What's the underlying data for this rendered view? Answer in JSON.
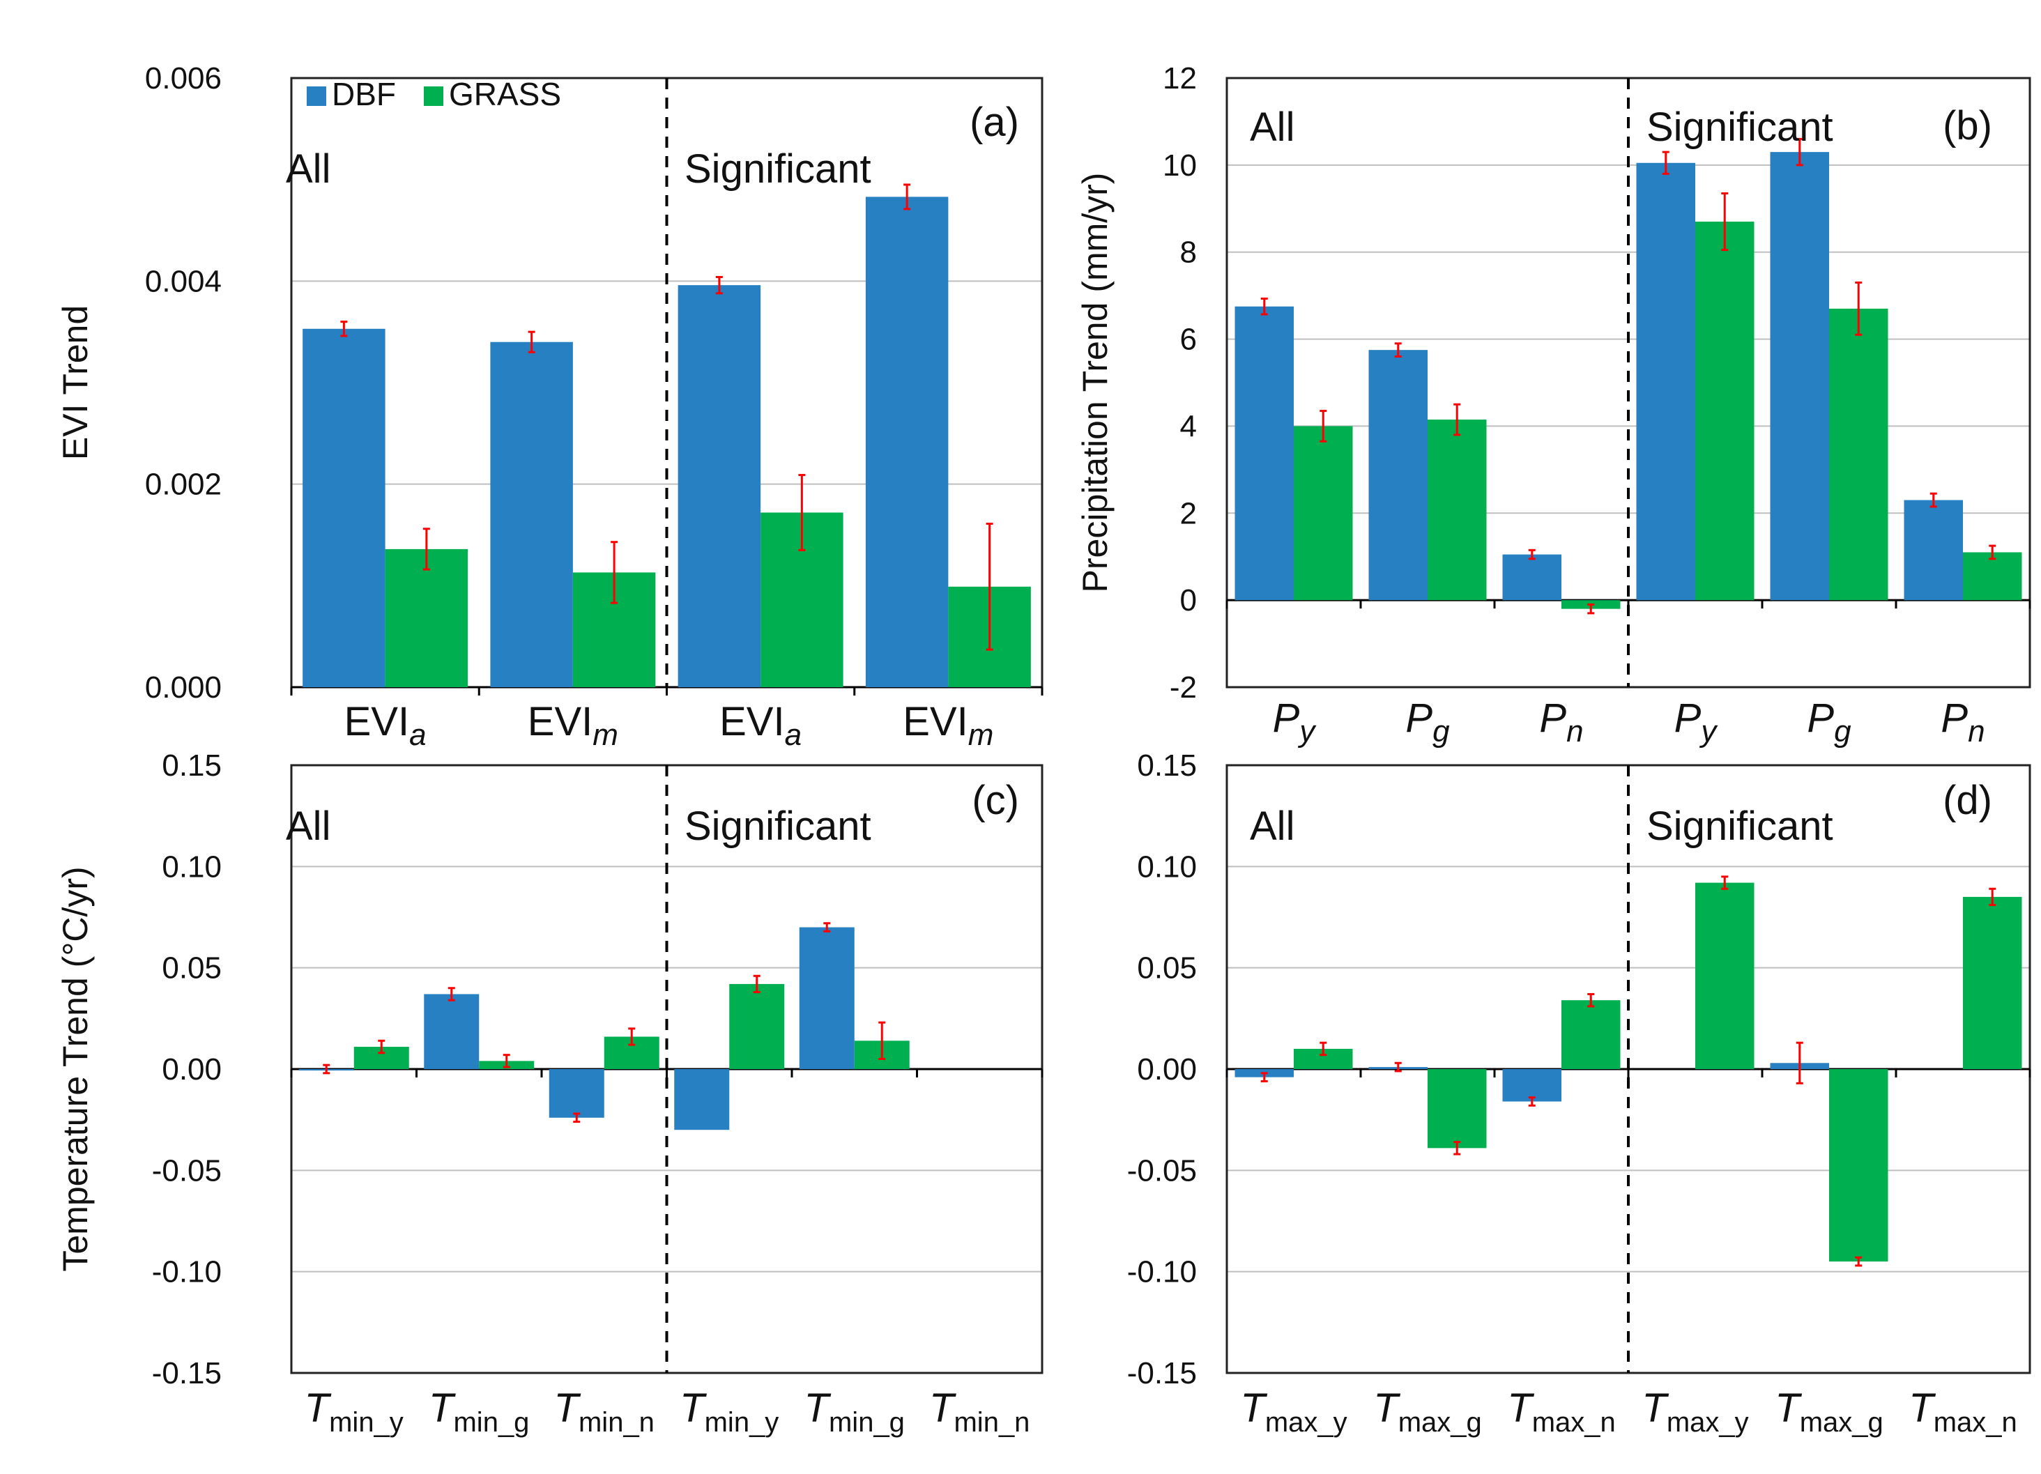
{
  "colors": {
    "DBF": "#2680C2",
    "GRASS": "#00B050",
    "error": "#FF0000",
    "grid": "#BFBFBF",
    "axis": "#000000"
  },
  "legend": {
    "entries": [
      "DBF",
      "GRASS"
    ]
  },
  "chart_data": [
    {
      "id": "a",
      "type": "bar",
      "tag": "(a)",
      "ylabel": "EVI Trend",
      "ylim": [
        0,
        0.006
      ],
      "yticks": [
        0,
        0.002,
        0.004,
        0.006
      ],
      "ytick_labels": [
        "0.000",
        "0.002",
        "0.004",
        "0.006"
      ],
      "group_labels": [
        "All",
        "Significant"
      ],
      "categories": [
        {
          "base": "EVI",
          "sub": "a"
        },
        {
          "base": "EVI",
          "sub": "m"
        },
        {
          "base": "EVI",
          "sub": "a"
        },
        {
          "base": "EVI",
          "sub": "m"
        }
      ],
      "series": [
        {
          "name": "DBF",
          "values": [
            0.00353,
            0.0034,
            0.00396,
            0.00483
          ],
          "errors": [
            7e-05,
            0.0001,
            8e-05,
            0.00012
          ]
        },
        {
          "name": "GRASS",
          "values": [
            0.00136,
            0.00113,
            0.00172,
            0.00099
          ],
          "errors": [
            0.0002,
            0.0003,
            0.00037,
            0.00062
          ]
        }
      ]
    },
    {
      "id": "b",
      "type": "bar",
      "tag": "(b)",
      "ylabel": "Precipitation Trend (mm/yr)",
      "ylim": [
        -2,
        12
      ],
      "yticks": [
        -2,
        0,
        2,
        4,
        6,
        8,
        10,
        12
      ],
      "ytick_labels": [
        "-2",
        "0",
        "2",
        "4",
        "6",
        "8",
        "10",
        "12"
      ],
      "group_labels": [
        "All",
        "Significant"
      ],
      "categories": [
        {
          "base": "P",
          "sub": "y"
        },
        {
          "base": "P",
          "sub": "g"
        },
        {
          "base": "P",
          "sub": "n"
        },
        {
          "base": "P",
          "sub": "y"
        },
        {
          "base": "P",
          "sub": "g"
        },
        {
          "base": "P",
          "sub": "n"
        }
      ],
      "series": [
        {
          "name": "DBF",
          "values": [
            6.75,
            5.75,
            1.05,
            10.05,
            10.3,
            2.3
          ],
          "errors": [
            0.18,
            0.15,
            0.1,
            0.25,
            0.3,
            0.15
          ]
        },
        {
          "name": "GRASS",
          "values": [
            4.0,
            4.15,
            -0.2,
            8.7,
            6.7,
            1.1
          ],
          "errors": [
            0.35,
            0.35,
            0.1,
            0.65,
            0.6,
            0.15
          ]
        }
      ]
    },
    {
      "id": "c",
      "type": "bar",
      "tag": "(c)",
      "ylabel": "Temperature Trend (°C/yr)",
      "ylim": [
        -0.15,
        0.15
      ],
      "yticks": [
        -0.15,
        -0.1,
        -0.05,
        0,
        0.05,
        0.1,
        0.15
      ],
      "ytick_labels": [
        "-0.15",
        "-0.10",
        "-0.05",
        "0.00",
        "0.05",
        "0.10",
        "0.15"
      ],
      "group_labels": [
        "All",
        "Significant"
      ],
      "categories": [
        {
          "base": "T",
          "sub": "min_y"
        },
        {
          "base": "T",
          "sub": "min_g"
        },
        {
          "base": "T",
          "sub": "min_n"
        },
        {
          "base": "T",
          "sub": "min_y"
        },
        {
          "base": "T",
          "sub": "min_g"
        },
        {
          "base": "T",
          "sub": "min_n"
        }
      ],
      "series": [
        {
          "name": "DBF",
          "values": [
            0.0,
            0.037,
            -0.024,
            -0.03,
            0.07,
            null
          ],
          "errors": [
            0.002,
            0.003,
            0.002,
            0,
            0.002,
            null
          ]
        },
        {
          "name": "GRASS",
          "values": [
            0.011,
            0.004,
            0.016,
            0.042,
            0.014,
            null
          ],
          "errors": [
            0.003,
            0.003,
            0.004,
            0.004,
            0.009,
            null
          ]
        }
      ]
    },
    {
      "id": "d",
      "type": "bar",
      "tag": "(d)",
      "ylabel": "",
      "ylim": [
        -0.15,
        0.15
      ],
      "yticks": [
        -0.15,
        -0.1,
        -0.05,
        0,
        0.05,
        0.1,
        0.15
      ],
      "ytick_labels": [
        "-0.15",
        "-0.10",
        "-0.05",
        "0.00",
        "0.05",
        "0.10",
        "0.15"
      ],
      "group_labels": [
        "All",
        "Significant"
      ],
      "categories": [
        {
          "base": "T",
          "sub": "max_y"
        },
        {
          "base": "T",
          "sub": "max_g"
        },
        {
          "base": "T",
          "sub": "max_n"
        },
        {
          "base": "T",
          "sub": "max_y"
        },
        {
          "base": "T",
          "sub": "max_g"
        },
        {
          "base": "T",
          "sub": "max_n"
        }
      ],
      "series": [
        {
          "name": "DBF",
          "values": [
            -0.004,
            0.001,
            -0.016,
            null,
            0.003,
            null
          ],
          "errors": [
            0.002,
            0.002,
            0.002,
            null,
            0.01,
            null
          ]
        },
        {
          "name": "GRASS",
          "values": [
            0.01,
            -0.039,
            0.034,
            0.092,
            -0.095,
            0.085
          ],
          "errors": [
            0.003,
            0.003,
            0.003,
            0.003,
            0.002,
            0.004
          ]
        }
      ]
    }
  ]
}
